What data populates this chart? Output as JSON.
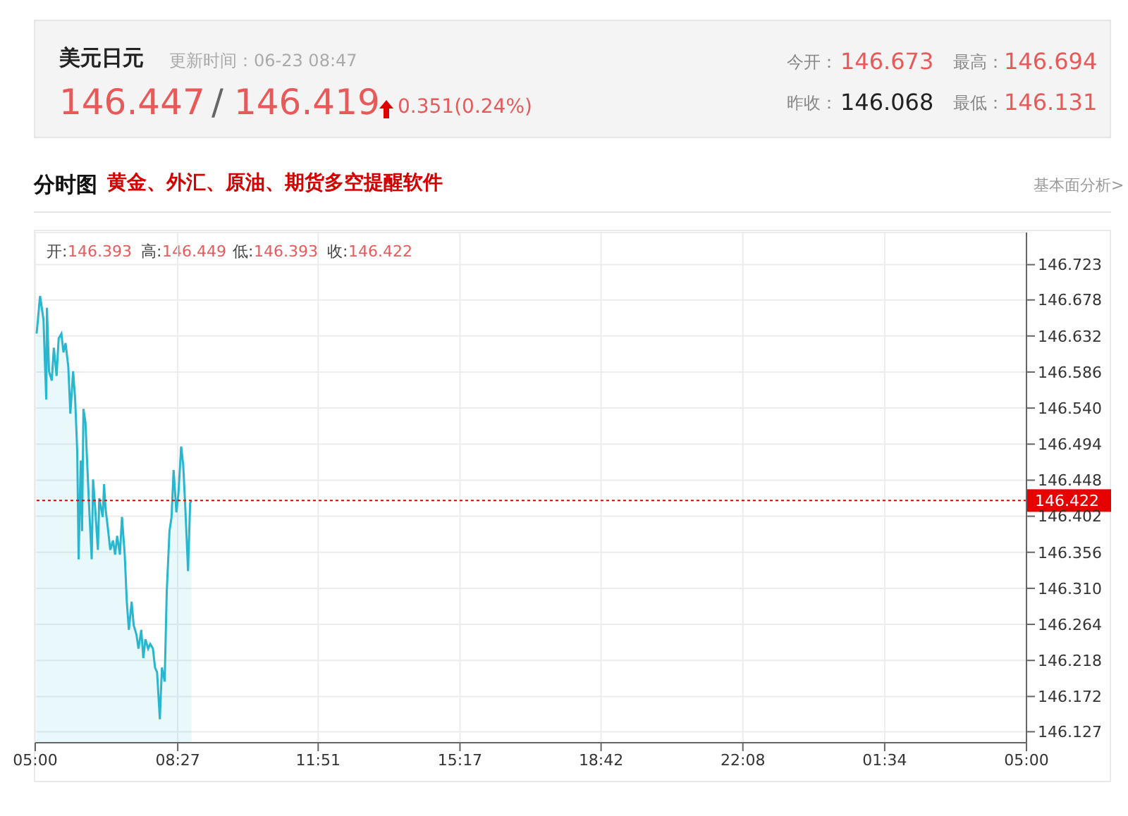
{
  "chart_data": {
    "type": "area",
    "title": "美元日元",
    "annotations": [
      "更新时间：06-23 08:47",
      "146.447",
      "/",
      "146.419",
      "0.351(0.24%)",
      "今开：",
      "146.673",
      "最高：",
      "146.694",
      "昨收：",
      "146.068",
      "最低：",
      "146.131",
      "分时图",
      "黄金、外汇、原油、期货多空提醒软件",
      "基本面分析>",
      "开:",
      "146.393",
      "高:",
      "146.449",
      "低:",
      "146.393",
      "收:",
      "146.422"
    ],
    "color": "#29b6cf",
    "x": [
      "--06-23T05:02",
      "--06-23T05:07",
      "--06-23T05:12",
      "--06-23T05:14",
      "--06-23T05:16",
      "--06-23T05:17",
      "--06-23T05:20",
      "--06-23T05:24",
      "--06-23T05:27",
      "--06-23T05:31",
      "--06-23T05:34",
      "--06-23T05:38",
      "--06-23T05:41",
      "--06-23T05:44",
      "--06-23T05:48",
      "--06-23T05:51",
      "--06-23T05:55",
      "--06-23T05:58",
      "--06-23T06:01",
      "--06-23T06:03",
      "--06-23T06:06",
      "--06-23T06:08",
      "--06-23T06:10",
      "--06-23T06:13",
      "--06-23T06:15",
      "--06-23T06:18",
      "--06-23T06:22",
      "--06-23T06:24",
      "--06-23T06:27",
      "--06-23T06:31",
      "--06-23T06:33",
      "--06-23T06:38",
      "--06-23T06:40",
      "--06-23T06:42",
      "--06-23T06:46",
      "--06-23T06:49",
      "--06-23T06:53",
      "--06-23T06:56",
      "--06-23T06:59",
      "--06-23T07:03",
      "--06-23T07:06",
      "--06-23T07:10",
      "--06-23T07:13",
      "--06-23T07:16",
      "--06-23T07:20",
      "--06-23T07:23",
      "--06-23T07:27",
      "--06-23T07:30",
      "--06-23T07:34",
      "--06-23T07:37",
      "--06-23T07:40",
      "--06-23T07:44",
      "--06-23T07:47",
      "--06-23T07:51",
      "--06-23T07:54",
      "--06-23T07:57",
      "--06-23T08:01",
      "--06-23T08:04",
      "--06-23T08:08",
      "--06-23T08:11",
      "--06-23T08:15",
      "--06-23T08:18",
      "--06-23T08:21",
      "--06-23T08:25",
      "--06-23T08:28",
      "--06-23T08:32",
      "--06-23T08:35",
      "--06-23T08:38",
      "--06-23T08:42",
      "--06-23T08:45",
      "--06-23T08:47"
    ],
    "values": [
      146.635,
      146.683,
      146.653,
      146.599,
      146.551,
      146.668,
      146.587,
      146.575,
      146.617,
      146.581,
      146.629,
      146.635,
      146.611,
      146.623,
      146.593,
      146.533,
      146.587,
      146.551,
      146.485,
      146.347,
      146.473,
      146.383,
      146.539,
      146.521,
      146.479,
      146.419,
      146.347,
      146.449,
      146.413,
      146.359,
      146.425,
      146.401,
      146.443,
      146.413,
      146.383,
      146.359,
      146.371,
      146.353,
      146.377,
      146.353,
      146.401,
      146.353,
      146.293,
      146.257,
      146.293,
      146.263,
      146.251,
      146.233,
      146.257,
      146.221,
      146.245,
      146.233,
      146.239,
      146.233,
      146.209,
      146.203,
      146.143,
      146.209,
      146.191,
      146.305,
      146.383,
      146.401,
      146.461,
      146.407,
      146.431,
      146.491,
      146.467,
      146.413,
      146.332,
      146.419,
      146.422
    ],
    "xlim": [
      "--06-23T05:00",
      "--06-24T05:00"
    ],
    "xticks": [
      {
        "value": "--06-23T05:00",
        "label": "05:00"
      },
      {
        "value": "--06-23T08:27",
        "label": "08:27"
      },
      {
        "value": "--06-23T11:51",
        "label": "11:51"
      },
      {
        "value": "--06-23T15:17",
        "label": "15:17"
      },
      {
        "value": "--06-23T18:42",
        "label": "18:42"
      },
      {
        "value": "--06-23T22:08",
        "label": "22:08"
      },
      {
        "value": "--06-24T01:34",
        "label": "01:34"
      },
      {
        "value": "--06-24T05:00",
        "label": "05:00"
      }
    ],
    "ylim": [
      146.113,
      146.764
    ],
    "yticks": [
      146.127,
      146.172,
      146.218,
      146.264,
      {
        "value": 146.31,
        "label": "146.310"
      },
      146.356,
      146.402,
      146.448,
      146.494,
      {
        "value": 146.54,
        "label": "146.540"
      },
      146.586,
      146.632,
      146.678,
      146.723
    ],
    "grid": true,
    "ref_lines": [
      {
        "axis": "y",
        "value": 146.422,
        "label": "146.422",
        "color": "#e60000",
        "line_style": "dotted"
      }
    ]
  }
}
